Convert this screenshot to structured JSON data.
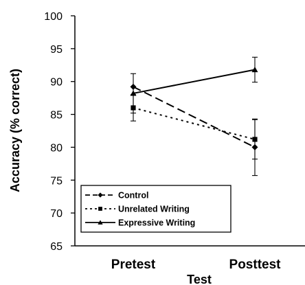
{
  "chart_data": {
    "type": "line",
    "categories": [
      "Pretest",
      "Posttest"
    ],
    "xlabel": "Test",
    "ylabel": "Accuracy (% correct)",
    "ylim": [
      65,
      100
    ],
    "yticks": [
      65,
      70,
      75,
      80,
      85,
      90,
      95,
      100
    ],
    "grid": false,
    "legend_position": "bottom-left",
    "series": [
      {
        "name": "Control",
        "values": [
          89.2,
          80.0
        ],
        "error": [
          null,
          4.3
        ],
        "marker": "diamond",
        "dash": "long-dash",
        "color": "#000000"
      },
      {
        "name": "Unrelated Writing",
        "values": [
          86.0,
          81.2
        ],
        "error": [
          2.0,
          3.0
        ],
        "marker": "square",
        "dash": "dotted",
        "color": "#000000"
      },
      {
        "name": "Expressive Writing",
        "values": [
          88.2,
          91.8
        ],
        "error": [
          3.0,
          1.9
        ],
        "marker": "triangle",
        "dash": "solid",
        "color": "#000000"
      }
    ]
  }
}
